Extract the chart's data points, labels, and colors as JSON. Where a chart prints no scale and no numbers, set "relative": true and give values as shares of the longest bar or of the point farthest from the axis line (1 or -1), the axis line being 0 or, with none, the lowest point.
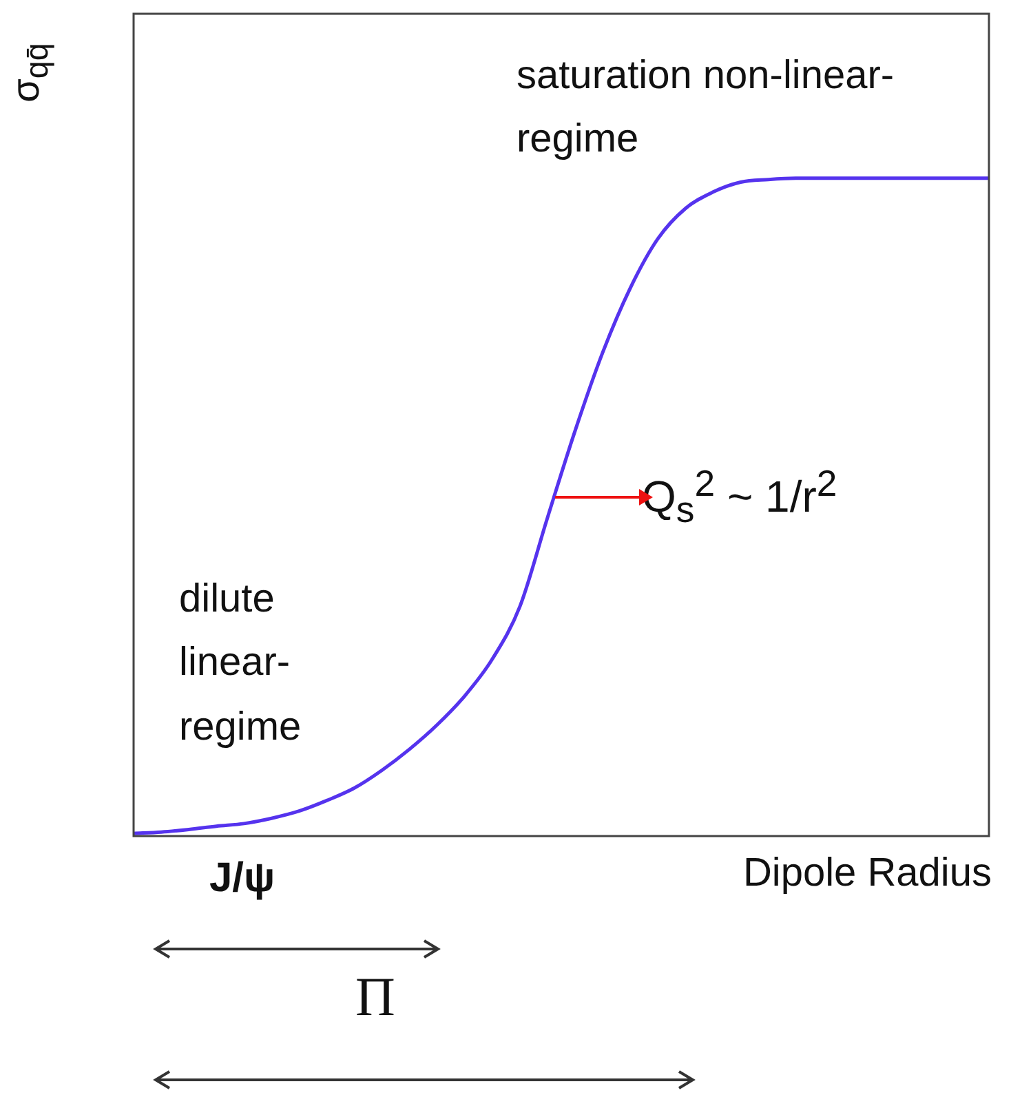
{
  "chart_data": {
    "type": "line",
    "relative": true,
    "ylabel": "σ$_{qq̄}$",
    "xlabel": "Dipole Radius",
    "categories": [
      null,
      null,
      null,
      null,
      null,
      null,
      null,
      null,
      null,
      null,
      null,
      null,
      null,
      null,
      null,
      null,
      null,
      null,
      null,
      null,
      null,
      null,
      null,
      null,
      null,
      null,
      null,
      null,
      null,
      null,
      null,
      null
    ],
    "series": [
      {
        "color": "#5533ee",
        "values": [
          0.004,
          0.006,
          0.01,
          0.015,
          0.019,
          0.027,
          0.038,
          0.054,
          0.073,
          0.1,
          0.132,
          0.169,
          0.213,
          0.269,
          0.349,
          0.484,
          0.616,
          0.735,
          0.833,
          0.908,
          0.954,
          0.979,
          0.994,
          0.998,
          1,
          1,
          1,
          1,
          1,
          1,
          1,
          1
        ]
      }
    ],
    "annotations": [
      "saturation non-linear-regime",
      "dilute linear-regime",
      "Q$_{s}$$^{2}$ ~ 1/r$^{2}$",
      "J/ψ",
      "Π"
    ]
  }
}
